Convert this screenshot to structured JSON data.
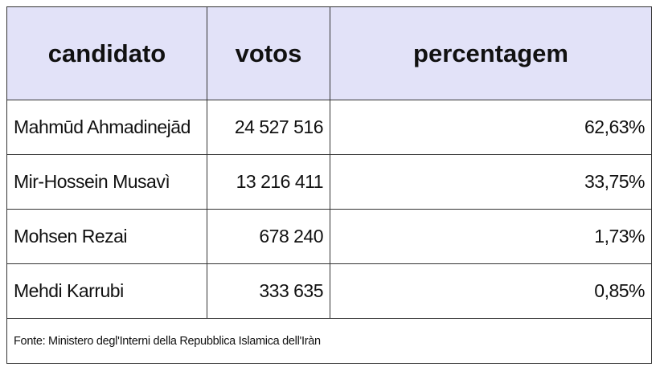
{
  "table": {
    "header": [
      "candidato",
      "votos",
      "percentagem"
    ],
    "rows": [
      [
        "Mahmūd Ahmadinejād",
        "24 527 516",
        "62,63%"
      ],
      [
        "Mir-Hossein Musavì",
        "13 216 411",
        "33,75%"
      ],
      [
        "Mohsen Rezai",
        "678 240",
        "1,73%"
      ],
      [
        "Mehdi Karrubi",
        "333 635",
        "0,85%"
      ]
    ],
    "source": "Fonte: Ministero degl'Interni della Repubblica Islamica dell'Iràn"
  }
}
